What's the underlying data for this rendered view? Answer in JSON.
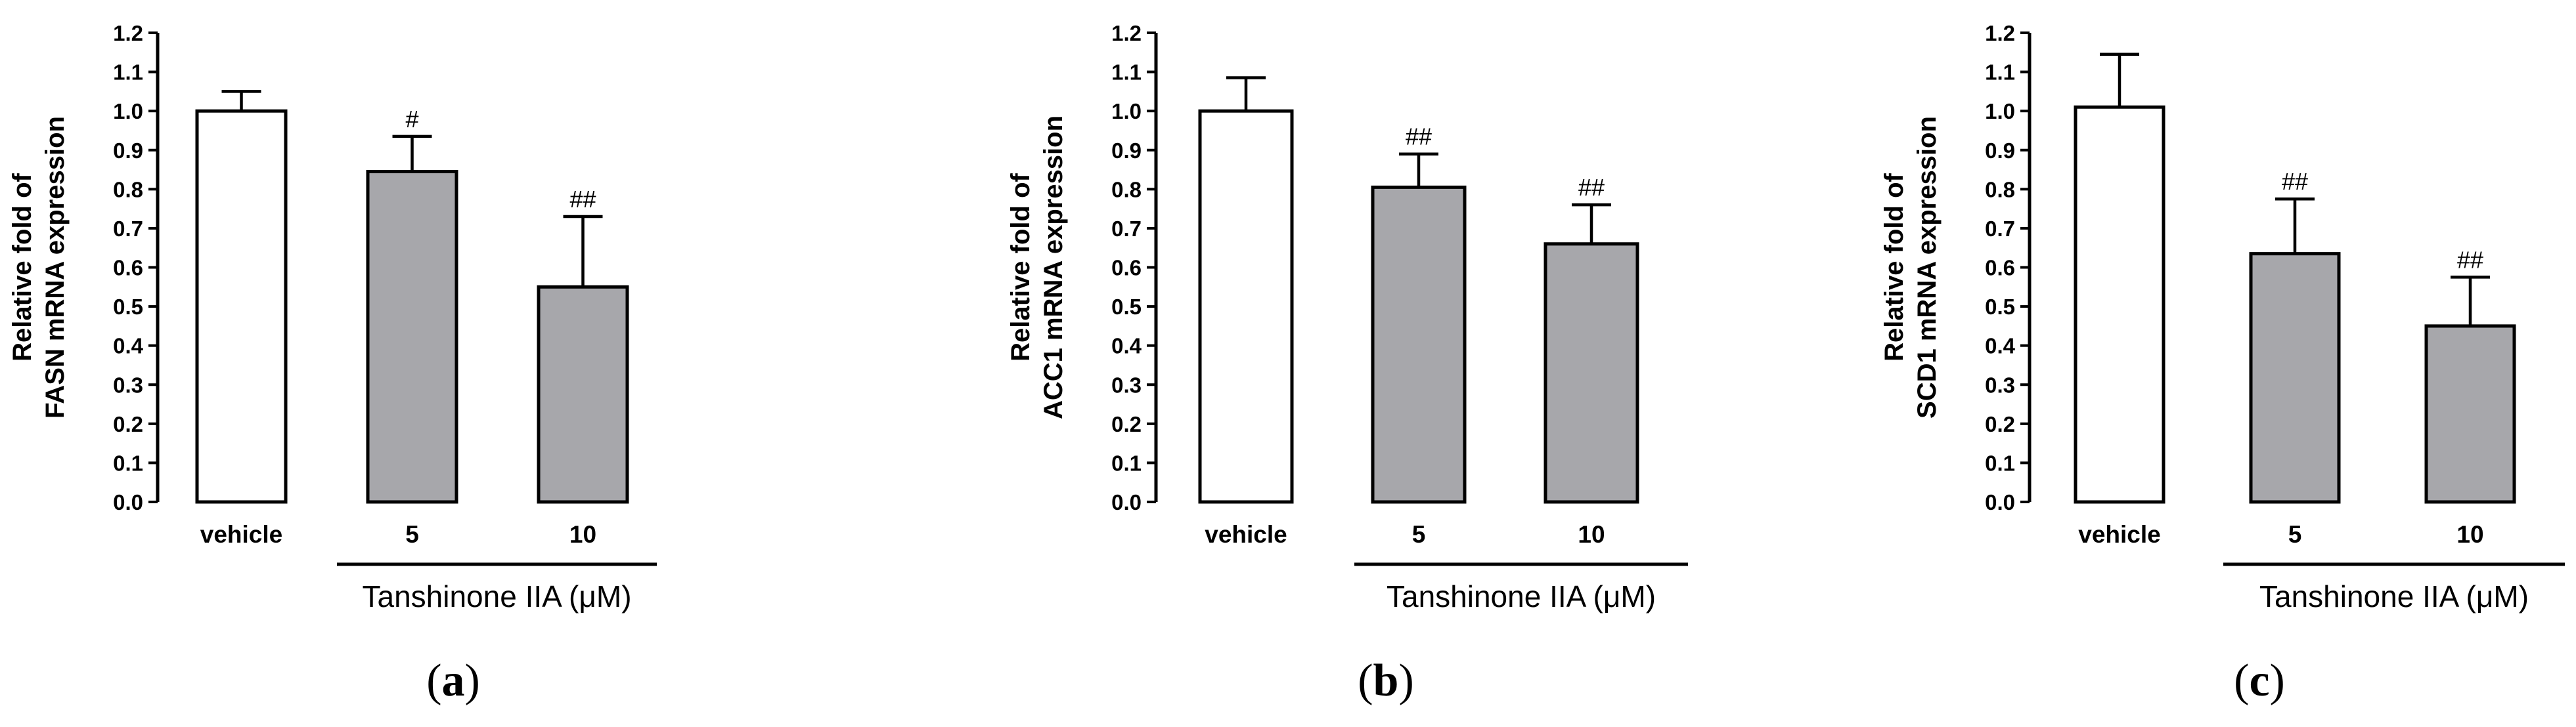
{
  "chart_data": [
    {
      "type": "bar",
      "panel": "a",
      "ylabel_lines": [
        "Relative fold of",
        "FASN mRNA expression"
      ],
      "ylim": [
        0,
        1.2
      ],
      "yticks": [
        "0.0",
        "0.1",
        "0.2",
        "0.3",
        "0.4",
        "0.5",
        "0.6",
        "0.7",
        "0.8",
        "0.9",
        "1.0",
        "1.1",
        "1.2"
      ],
      "categories": [
        "vehicle",
        "5",
        "10"
      ],
      "values": [
        1.0,
        0.845,
        0.55
      ],
      "errors": [
        0.05,
        0.09,
        0.18
      ],
      "significance": [
        "",
        "#",
        "##"
      ],
      "bar_colors": [
        "#ffffff",
        "#a7a7ab",
        "#a7a7ab"
      ],
      "group_label": "Tanshinone IIA (μM)"
    },
    {
      "type": "bar",
      "panel": "b",
      "ylabel_lines": [
        "Relative fold of",
        "ACC1 mRNA expression"
      ],
      "ylim": [
        0,
        1.2
      ],
      "yticks": [
        "0.0",
        "0.1",
        "0.2",
        "0.3",
        "0.4",
        "0.5",
        "0.6",
        "0.7",
        "0.8",
        "0.9",
        "1.0",
        "1.1",
        "1.2"
      ],
      "categories": [
        "vehicle",
        "5",
        "10"
      ],
      "values": [
        1.0,
        0.805,
        0.66
      ],
      "errors": [
        0.085,
        0.085,
        0.1
      ],
      "significance": [
        "",
        "##",
        "##"
      ],
      "bar_colors": [
        "#ffffff",
        "#a7a7ab",
        "#a7a7ab"
      ],
      "group_label": "Tanshinone IIA (μM)"
    },
    {
      "type": "bar",
      "panel": "c",
      "ylabel_lines": [
        "Relative fold of",
        "SCD1 mRNA expression"
      ],
      "ylim": [
        0,
        1.2
      ],
      "yticks": [
        "0.0",
        "0.1",
        "0.2",
        "0.3",
        "0.4",
        "0.5",
        "0.6",
        "0.7",
        "0.8",
        "0.9",
        "1.0",
        "1.1",
        "1.2"
      ],
      "categories": [
        "vehicle",
        "5",
        "10"
      ],
      "values": [
        1.01,
        0.635,
        0.45
      ],
      "errors": [
        0.135,
        0.14,
        0.125
      ],
      "significance": [
        "",
        "##",
        "##"
      ],
      "bar_colors": [
        "#ffffff",
        "#a7a7ab",
        "#a7a7ab"
      ],
      "group_label": "Tanshinone IIA (μM)"
    }
  ],
  "panel_labels": [
    "a",
    "b",
    "c"
  ]
}
